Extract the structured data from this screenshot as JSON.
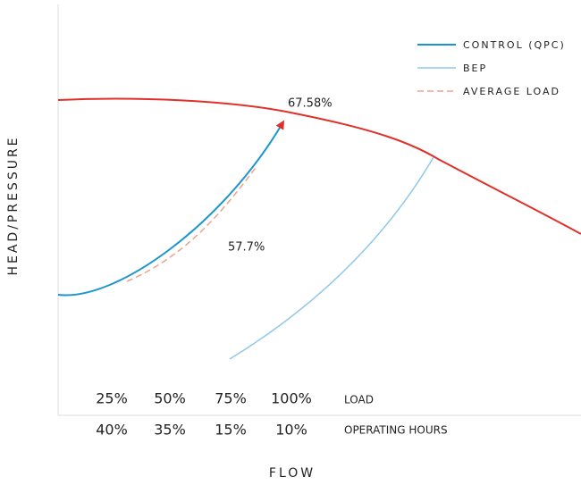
{
  "axes": {
    "y_label": "HEAD/PRESSURE",
    "x_label": "FLOW"
  },
  "legend": [
    "CONTROL (QPC)",
    "BEP",
    "AVERAGE LOAD"
  ],
  "annotations": [
    "67.58%",
    "57.7%"
  ],
  "table": {
    "loads": [
      "25%",
      "50%",
      "75%",
      "100%"
    ],
    "load_label": "LOAD",
    "hours": [
      "40%",
      "35%",
      "15%",
      "10%"
    ],
    "hours_label": "OPERATING HOURS"
  }
}
